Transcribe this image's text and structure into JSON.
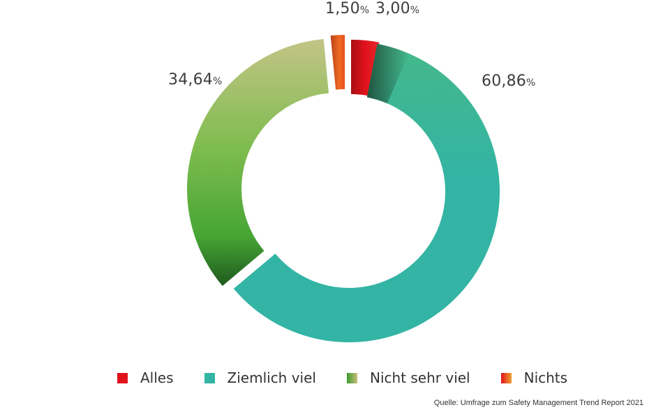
{
  "chart_data": {
    "type": "pie",
    "title": "",
    "series": [
      {
        "name": "Alles",
        "value": 3.0,
        "display": "3,00"
      },
      {
        "name": "Ziemlich viel",
        "value": 60.86,
        "display": "60,86"
      },
      {
        "name": "Nicht sehr viel",
        "value": 34.64,
        "display": "34,64"
      },
      {
        "name": "Nichts",
        "value": 1.5,
        "display": "1,50"
      }
    ],
    "unit": "%",
    "legend_position": "bottom",
    "colors": {
      "Alles": "#e0121c",
      "Ziemlich viel": "#33b4a4",
      "Nicht sehr viel": "#5aad3c",
      "Nichts": "#e8521f"
    }
  },
  "legend": {
    "items": [
      "Alles",
      "Ziemlich viel",
      "Nicht sehr viel",
      "Nichts"
    ]
  },
  "source_text": "Quelle: Umfrage zum Safety Management Trend Report 2021"
}
